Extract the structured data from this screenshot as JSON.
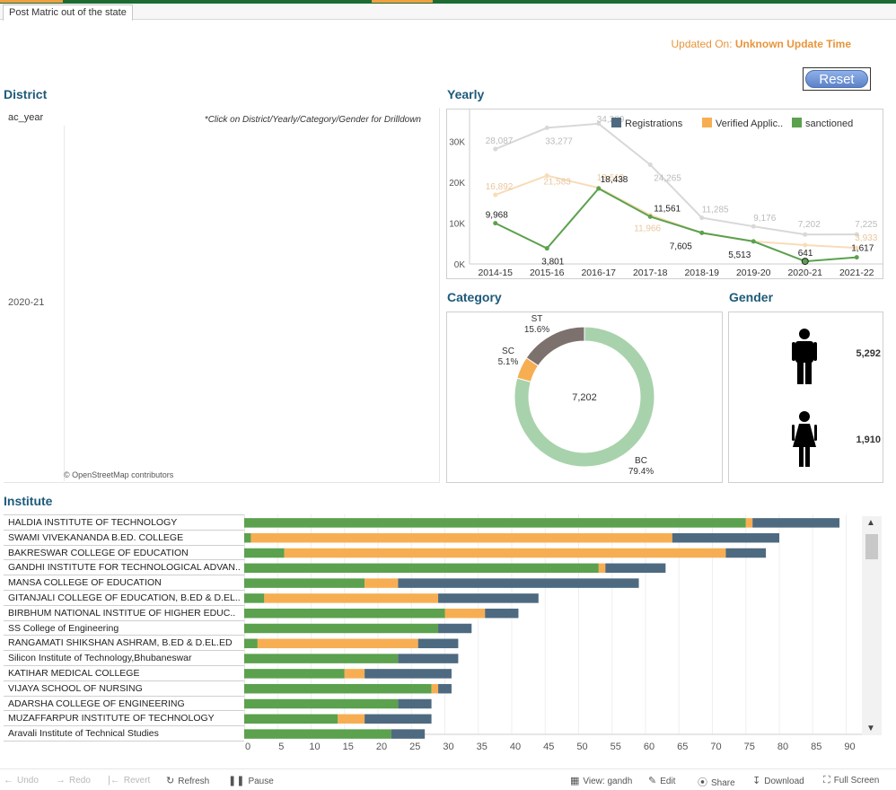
{
  "tab": {
    "label": "Post Matric out of the state"
  },
  "updated": {
    "prefix": "Updated On:",
    "value": "Unknown Update Time"
  },
  "reset": {
    "label": "Reset"
  },
  "district": {
    "title": "District",
    "column_header": "ac_year",
    "hint": "*Click on District/Yearly/Category/Gender for Drilldown",
    "year": "2020-21",
    "attribution": "© OpenStreetMap contributors"
  },
  "yearly": {
    "title": "Yearly"
  },
  "category": {
    "title": "Category"
  },
  "gender": {
    "title": "Gender",
    "male_value": "5,292",
    "female_value": "1,910"
  },
  "institute": {
    "title": "Institute"
  },
  "colors": {
    "registrations": "#4e6a80",
    "verified": "#f7ae52",
    "sanctioned": "#5ba14e",
    "bc": "#a8d2ab",
    "sc": "#f7ae52",
    "st": "#7d716e"
  },
  "chart_data": [
    {
      "type": "line",
      "title": "",
      "categories": [
        "2014-15",
        "2015-16",
        "2016-17",
        "2017-18",
        "2018-19",
        "2019-20",
        "2020-21",
        "2021-22"
      ],
      "y_ticks": [
        "0K",
        "10K",
        "20K",
        "30K"
      ],
      "ylim": [
        0,
        36000
      ],
      "legend_position": "top-right",
      "series": [
        {
          "name": "Registrations",
          "values": [
            28087,
            33277,
            34289,
            24265,
            11285,
            9176,
            7202,
            7225
          ],
          "labels": [
            "28,087",
            "33,277",
            "34,289",
            "24,265",
            "11,285",
            "9,176",
            "7,202",
            "7,225"
          ]
        },
        {
          "name": "Verified Applic..",
          "values": [
            16892,
            21583,
            18610,
            11966,
            7605,
            5513,
            4600,
            3933
          ],
          "labels": [
            "16,892",
            "21,583",
            "18,610",
            "11,966",
            "",
            "",
            "",
            "3,933"
          ]
        },
        {
          "name": "sanctioned",
          "values": [
            9968,
            3801,
            18438,
            11561,
            7605,
            5513,
            641,
            1617
          ],
          "labels": [
            "9,968",
            "3,801",
            "18,438",
            "11,561",
            "7,605",
            "5,513",
            "641",
            "1,617"
          ]
        }
      ]
    },
    {
      "type": "pie",
      "center_label": "7,202",
      "slices": [
        {
          "name": "BC",
          "percent": 79.4,
          "label": "79.4%"
        },
        {
          "name": "SC",
          "percent": 5.1,
          "label": "5.1%"
        },
        {
          "name": "ST",
          "percent": 15.6,
          "label": "15.6%"
        }
      ]
    },
    {
      "type": "bar",
      "orientation": "horizontal",
      "stacked": true,
      "xlim": [
        0,
        93
      ],
      "x_ticks": [
        "0",
        "5",
        "10",
        "15",
        "20",
        "25",
        "30",
        "35",
        "40",
        "45",
        "50",
        "55",
        "60",
        "65",
        "70",
        "75",
        "80",
        "85",
        "90"
      ],
      "categories": [
        "HALDIA INSTITUTE OF TECHNOLOGY",
        "SWAMI VIVEKANANDA B.ED. COLLEGE",
        "BAKRESWAR COLLEGE OF EDUCATION",
        "GANDHI INSTITUTE FOR TECHNOLOGICAL ADVAN..",
        "MANSA COLLEGE OF EDUCATION",
        "GITANJALI COLLEGE OF EDUCATION, B.ED & D.EL..",
        "BIRBHUM NATIONAL  INSTITUE OF HIGHER EDUC..",
        "SS College of Engineering",
        "RANGAMATI SHIKSHAN ASHRAM, B.ED & D.EL.ED",
        "Silicon Institute of Technology,Bhubaneswar",
        "KATIHAR MEDICAL COLLEGE",
        "VIJAYA SCHOOL OF NURSING",
        "ADARSHA COLLEGE OF ENGINEERING",
        "MUZAFFARPUR INSTITUTE OF TECHNOLOGY",
        "Aravali Institute of Technical Studies"
      ],
      "series": [
        {
          "name": "sanctioned",
          "values": [
            75,
            1,
            6,
            53,
            18,
            3,
            30,
            29,
            2,
            23,
            15,
            28,
            23,
            14,
            22
          ]
        },
        {
          "name": "Verified Applic..",
          "values": [
            1,
            63,
            66,
            1,
            5,
            26,
            6,
            0,
            24,
            0,
            3,
            1,
            0,
            4,
            0
          ]
        },
        {
          "name": "Registrations",
          "values": [
            13,
            16,
            6,
            9,
            36,
            15,
            5,
            5,
            6,
            9,
            13,
            2,
            5,
            10,
            5
          ]
        }
      ]
    }
  ],
  "footer": {
    "undo": "Undo",
    "redo": "Redo",
    "revert": "Revert",
    "refresh": "Refresh",
    "pause": "Pause",
    "view": "View: gandh",
    "edit": "Edit",
    "share": "Share",
    "download": "Download",
    "fullscreen": "Full Screen"
  }
}
